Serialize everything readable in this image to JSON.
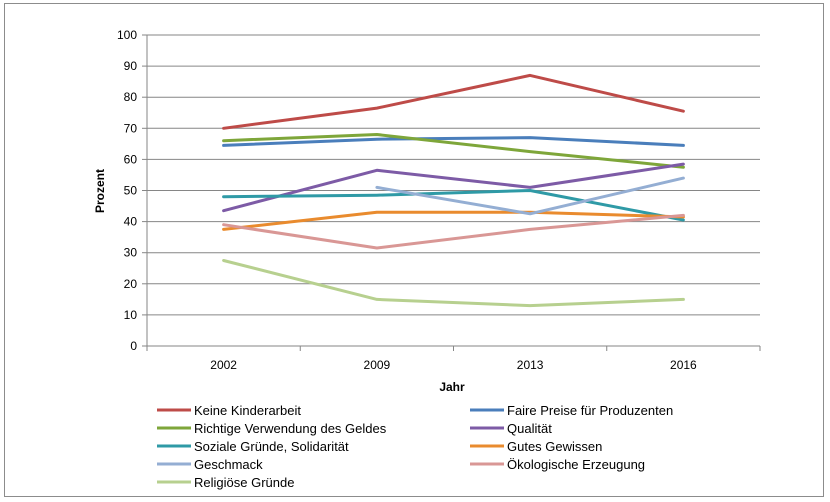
{
  "chart_data": {
    "type": "line",
    "categories": [
      "2002",
      "2009",
      "2013",
      "2016"
    ],
    "xlabel": "Jahr",
    "ylabel": "Prozent",
    "ylim": [
      0,
      100
    ],
    "yticks": [
      "0",
      "10",
      "20",
      "30",
      "40",
      "50",
      "60",
      "70",
      "80",
      "90",
      "100"
    ],
    "grid": true,
    "legend_position": "bottom",
    "series": [
      {
        "name": "Keine Kinderarbeit",
        "color": "#be4b48",
        "values": [
          70,
          76.5,
          87,
          75.5
        ]
      },
      {
        "name": "Faire Preise für Produzenten",
        "color": "#4a7ebb",
        "values": [
          64.5,
          66.5,
          67,
          64.5
        ]
      },
      {
        "name": "Richtige Verwendung des Geldes",
        "color": "#7ea63a",
        "values": [
          66,
          68,
          62.5,
          57.5
        ]
      },
      {
        "name": "Qualität",
        "color": "#7d5ba6",
        "values": [
          43.5,
          56.5,
          51,
          58.5
        ]
      },
      {
        "name": "Soziale Gründe, Solidarität",
        "color": "#2f9aa6",
        "values": [
          48,
          48.5,
          50,
          40.5
        ]
      },
      {
        "name": "Gutes Gewissen",
        "color": "#e98b2e",
        "values": [
          37.5,
          43,
          43,
          41.5
        ]
      },
      {
        "name": "Geschmack",
        "color": "#94aed3",
        "values": [
          null,
          51,
          42.5,
          54
        ]
      },
      {
        "name": "Ökologische Erzeugung",
        "color": "#d99795",
        "values": [
          39,
          31.5,
          37.5,
          42
        ]
      },
      {
        "name": "Religiöse Gründe",
        "color": "#b7d08f",
        "values": [
          27.5,
          15,
          13,
          15
        ]
      }
    ]
  }
}
